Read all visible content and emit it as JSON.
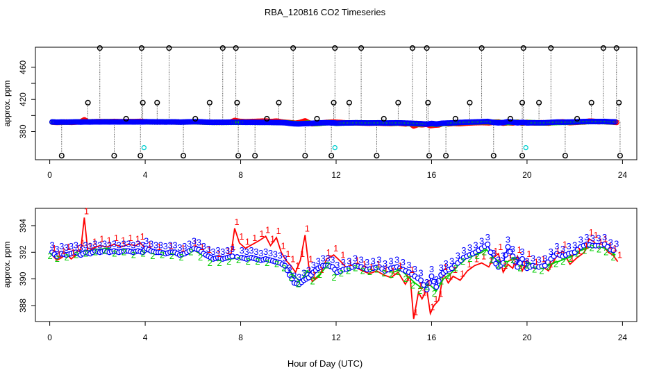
{
  "title": "RBA_120816  CO2 Timeseries",
  "xlabel": "Hour of Day (UTC)",
  "colors": {
    "s1": "#ff0000",
    "s2": "#00cd00",
    "s3": "#0000ff",
    "flag": "#000000",
    "flag_low": "#00cdcd"
  },
  "chart_data": [
    {
      "type": "scatter",
      "panel": "top",
      "ylabel": "approx. ppm",
      "xlim": [
        -0.6,
        24.6
      ],
      "ylim": [
        345,
        485
      ],
      "xticks": [
        0,
        4,
        8,
        12,
        16,
        20,
        24
      ],
      "yticks": [
        380,
        420,
        460
      ],
      "ytick_labels": [
        "380",
        "420",
        "460"
      ],
      "baseline_ppm": 392,
      "flagged_high": [
        1.6,
        2.1,
        3.2,
        3.85,
        3.9,
        4.5,
        5.0,
        6.1,
        6.7,
        7.25,
        7.8,
        7.85,
        9.1,
        9.6,
        10.2,
        11.2,
        11.9,
        11.95,
        12.55,
        13.05,
        14.0,
        14.6,
        15.2,
        15.8,
        15.85,
        17.0,
        17.6,
        18.1,
        19.3,
        19.8,
        19.85,
        20.5,
        21.0,
        22.1,
        22.7,
        23.2,
        23.75,
        23.85
      ],
      "flagged_high_ppm": [
        416,
        484,
        396,
        484,
        416,
        416,
        484,
        396,
        416,
        484,
        484,
        416,
        396,
        416,
        484,
        396,
        416,
        484,
        416,
        484,
        396,
        416,
        484,
        484,
        416,
        396,
        416,
        484,
        396,
        416,
        484,
        416,
        484,
        396,
        416,
        484,
        484,
        416
      ],
      "flagged_low": [
        0.5,
        2.7,
        3.8,
        5.6,
        7.9,
        8.6,
        10.7,
        11.8,
        13.7,
        15.9,
        16.6,
        18.6,
        19.8,
        21.6,
        23.9
      ],
      "flagged_low_ppm": [
        350,
        350,
        350,
        350,
        350,
        350,
        350,
        350,
        350,
        350,
        350,
        350,
        350,
        350,
        350
      ],
      "cyan_points": [
        3.95,
        11.95,
        19.95
      ],
      "cyan_ppm": [
        360,
        360,
        360
      ]
    },
    {
      "type": "line",
      "panel": "bottom",
      "ylabel": "approx. ppm",
      "xlim": [
        -0.6,
        24.6
      ],
      "ylim": [
        386.8,
        395.3
      ],
      "xticks": [
        0,
        4,
        8,
        12,
        16,
        20,
        24
      ],
      "yticks": [
        388,
        390,
        392,
        394
      ],
      "ytick_labels": [
        "388",
        "390",
        "392",
        "394"
      ],
      "series": [
        {
          "name": "1",
          "x": [
            0.1,
            0.3,
            0.5,
            0.7,
            0.9,
            1.1,
            1.3,
            1.45,
            1.6,
            1.8,
            2.1,
            2.4,
            2.7,
            3.0,
            3.3,
            3.6,
            3.8,
            4.1,
            4.5,
            5.0,
            5.5,
            6.0,
            6.3,
            6.6,
            7.0,
            7.4,
            7.6,
            7.75,
            7.95,
            8.2,
            8.5,
            8.8,
            9.05,
            9.25,
            9.5,
            9.7,
            9.9,
            10.1,
            10.3,
            10.5,
            10.7,
            10.85,
            11.0,
            11.3,
            11.6,
            11.9,
            12.2,
            12.5,
            12.8,
            13.1,
            13.4,
            13.7,
            14.0,
            14.3,
            14.6,
            14.9,
            15.1,
            15.25,
            15.45,
            15.6,
            15.8,
            15.95,
            16.1,
            16.3,
            16.5,
            16.7,
            16.9,
            17.2,
            17.5,
            17.8,
            18.1,
            18.4,
            18.6,
            18.8,
            19.0,
            19.2,
            19.4,
            19.6,
            19.8,
            20.0,
            20.3,
            20.6,
            20.9,
            21.2,
            21.5,
            21.8,
            22.1,
            22.4,
            22.6,
            22.8,
            23.0,
            23.2,
            23.4,
            23.6,
            23.8
          ],
          "values": [
            391.8,
            391.4,
            391.6,
            391.9,
            391.5,
            391.8,
            392.2,
            394.6,
            392.0,
            392.3,
            392.5,
            392.4,
            392.6,
            392.4,
            392.6,
            392.5,
            392.7,
            392.1,
            391.9,
            392.0,
            391.8,
            392.2,
            391.9,
            391.7,
            391.4,
            391.6,
            391.9,
            393.8,
            392.7,
            392.3,
            392.6,
            392.9,
            393.2,
            392.5,
            393.1,
            392.0,
            391.4,
            391.0,
            390.5,
            391.4,
            393.3,
            391.0,
            389.8,
            390.2,
            391.5,
            391.8,
            391.3,
            390.7,
            390.9,
            390.6,
            390.4,
            390.6,
            390.3,
            390.1,
            390.5,
            389.6,
            390.2,
            387.0,
            389.0,
            388.5,
            389.2,
            387.4,
            388.0,
            388.4,
            390.4,
            389.7,
            390.2,
            389.9,
            390.6,
            391.0,
            391.2,
            390.9,
            391.6,
            391.9,
            390.5,
            391.1,
            390.8,
            391.7,
            390.6,
            391.4,
            390.8,
            391.0,
            390.6,
            391.6,
            392.1,
            391.1,
            391.6,
            392.0,
            393.0,
            392.8,
            392.3,
            392.5,
            392.0,
            391.8,
            391.3
          ]
        },
        {
          "name": "2",
          "x": [
            0.1,
            0.4,
            0.8,
            1.2,
            1.6,
            2.0,
            2.4,
            2.8,
            3.2,
            3.6,
            4.0,
            4.4,
            4.8,
            5.2,
            5.6,
            6.0,
            6.4,
            6.8,
            7.2,
            7.6,
            8.0,
            8.4,
            8.8,
            9.2,
            9.6,
            9.9,
            10.2,
            10.5,
            10.8,
            11.1,
            11.4,
            11.7,
            12.0,
            12.3,
            12.6,
            12.9,
            13.2,
            13.5,
            13.8,
            14.1,
            14.4,
            14.7,
            15.0,
            15.3,
            15.6,
            15.9,
            16.2,
            16.5,
            16.8,
            17.1,
            17.4,
            17.7,
            18.0,
            18.3,
            18.6,
            18.9,
            19.2,
            19.5,
            19.8,
            20.1,
            20.4,
            20.7,
            21.0,
            21.3,
            21.6,
            21.9,
            22.2,
            22.5,
            22.8,
            23.1,
            23.4,
            23.7
          ],
          "values": [
            391.9,
            391.7,
            391.8,
            392.0,
            392.1,
            392.2,
            392.3,
            392.1,
            392.2,
            392.0,
            392.1,
            391.9,
            392.0,
            391.9,
            391.8,
            392.2,
            391.8,
            391.4,
            391.4,
            391.5,
            391.6,
            391.5,
            391.5,
            391.4,
            391.3,
            391.0,
            390.3,
            389.8,
            390.6,
            390.0,
            390.5,
            391.2,
            390.3,
            390.6,
            390.8,
            391.0,
            390.8,
            390.7,
            390.9,
            390.6,
            390.5,
            390.7,
            390.2,
            389.7,
            389.3,
            389.6,
            389.1,
            390.0,
            390.4,
            391.0,
            391.5,
            391.7,
            391.9,
            392.2,
            391.6,
            391.2,
            391.3,
            391.6,
            391.0,
            391.2,
            390.9,
            390.8,
            391.1,
            391.3,
            391.5,
            391.7,
            392.1,
            392.3,
            392.5,
            392.4,
            392.2,
            391.8
          ]
        },
        {
          "name": "3",
          "x": [
            0.1,
            0.3,
            0.5,
            0.7,
            0.9,
            1.1,
            1.3,
            1.5,
            1.7,
            1.9,
            2.1,
            2.3,
            2.5,
            2.7,
            2.9,
            3.1,
            3.3,
            3.5,
            3.7,
            3.9,
            4.05,
            4.25,
            4.45,
            4.65,
            4.85,
            5.05,
            5.25,
            5.45,
            5.65,
            5.85,
            6.05,
            6.25,
            6.45,
            6.65,
            6.85,
            7.05,
            7.25,
            7.45,
            7.65,
            8.05,
            8.25,
            8.45,
            8.65,
            8.85,
            9.05,
            9.25,
            9.45,
            9.65,
            9.85,
            10.05,
            10.25,
            10.45,
            10.65,
            10.85,
            11.05,
            11.25,
            11.45,
            11.65,
            11.85,
            12.05,
            12.3,
            12.55,
            12.8,
            13.05,
            13.3,
            13.55,
            13.8,
            14.05,
            14.3,
            14.55,
            14.8,
            15.05,
            15.3,
            15.55,
            15.8,
            16.0,
            16.2,
            16.4,
            16.6,
            16.85,
            17.1,
            17.35,
            17.6,
            17.85,
            18.1,
            18.35,
            18.6,
            18.8,
            19.0,
            19.2,
            19.4,
            19.6,
            19.8,
            20.0,
            20.25,
            20.5,
            20.75,
            21.0,
            21.25,
            21.5,
            21.75,
            22.0,
            22.25,
            22.5,
            22.75,
            23.0,
            23.25,
            23.5,
            23.75
          ],
          "values": [
            392.0,
            391.7,
            391.9,
            391.8,
            391.9,
            392.0,
            391.8,
            392.0,
            391.9,
            392.1,
            392.0,
            392.1,
            392.0,
            392.1,
            392.0,
            392.1,
            392.1,
            392.0,
            392.1,
            392.0,
            392.3,
            392.1,
            392.0,
            392.0,
            391.9,
            392.0,
            392.0,
            391.8,
            391.9,
            392.1,
            392.3,
            392.2,
            391.9,
            391.7,
            391.5,
            391.6,
            391.5,
            391.6,
            391.7,
            391.6,
            391.5,
            391.6,
            391.5,
            391.4,
            391.5,
            391.4,
            391.3,
            391.2,
            391.0,
            390.3,
            389.7,
            389.6,
            389.9,
            390.1,
            390.5,
            390.8,
            391.0,
            391.0,
            390.9,
            390.5,
            390.7,
            390.8,
            391.0,
            390.9,
            390.7,
            390.8,
            390.9,
            390.6,
            390.8,
            390.9,
            390.7,
            390.5,
            390.2,
            389.9,
            389.2,
            390.2,
            389.4,
            390.3,
            390.6,
            390.8,
            391.2,
            391.6,
            391.8,
            392.0,
            392.3,
            392.6,
            391.4,
            390.9,
            391.2,
            392.4,
            391.7,
            390.9,
            391.5,
            390.8,
            391.0,
            390.9,
            391.0,
            391.5,
            391.9,
            391.7,
            391.9,
            392.0,
            392.4,
            392.6,
            392.5,
            392.5,
            392.6,
            392.2,
            392.1
          ]
        }
      ]
    }
  ]
}
